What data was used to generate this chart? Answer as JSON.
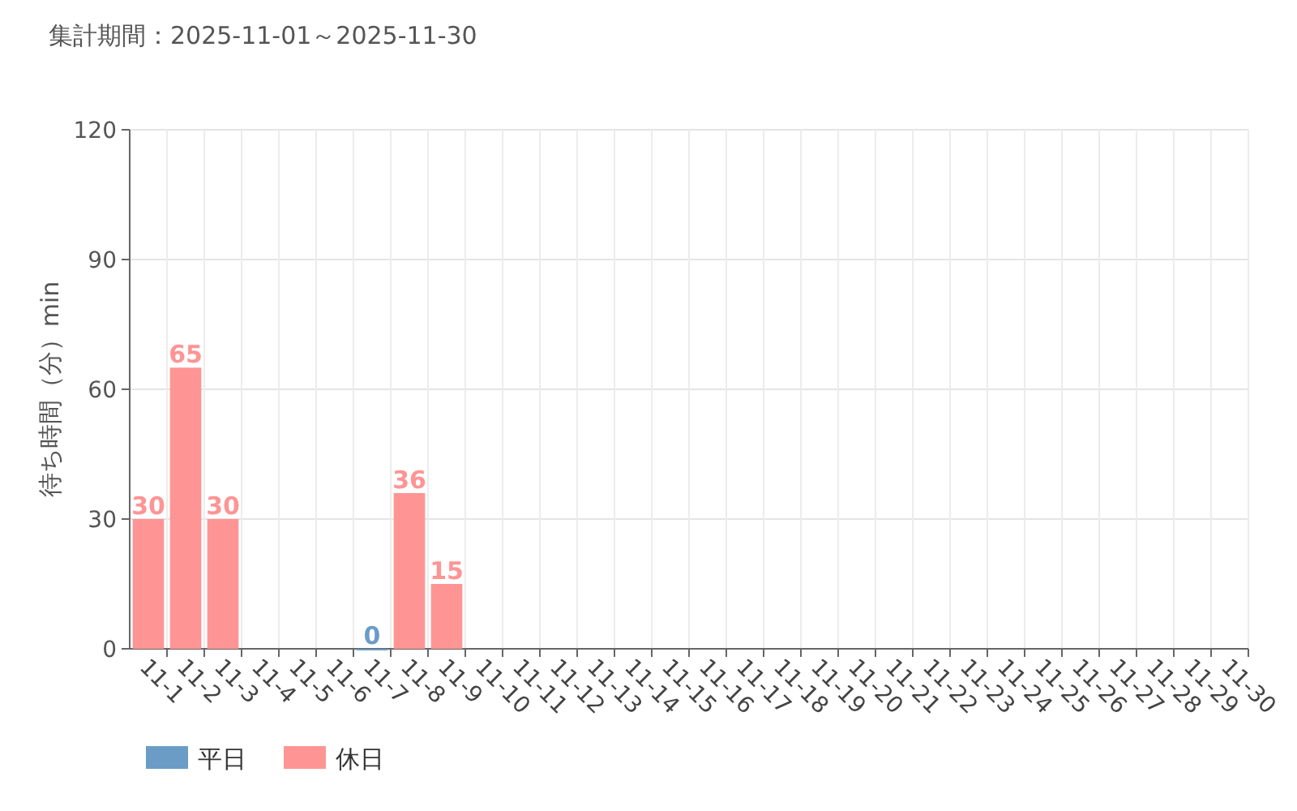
{
  "chart_data": {
    "type": "bar",
    "title": "集計期間：2025-11-01～2025-11-30",
    "ylabel": "待ち時間（分）min",
    "categories": [
      "11-1",
      "11-2",
      "11-3",
      "11-4",
      "11-5",
      "11-6",
      "11-7",
      "11-8",
      "11-9",
      "11-10",
      "11-11",
      "11-12",
      "11-13",
      "11-14",
      "11-15",
      "11-16",
      "11-17",
      "11-18",
      "11-19",
      "11-20",
      "11-21",
      "11-22",
      "11-23",
      "11-24",
      "11-25",
      "11-26",
      "11-27",
      "11-28",
      "11-29",
      "11-30"
    ],
    "series": [
      {
        "name": "平日",
        "color": "#6a9cc6",
        "values": [
          null,
          null,
          null,
          null,
          null,
          null,
          0,
          null,
          null,
          null,
          null,
          null,
          null,
          null,
          null,
          null,
          null,
          null,
          null,
          null,
          null,
          null,
          null,
          null,
          null,
          null,
          null,
          null,
          null,
          null
        ]
      },
      {
        "name": "休日",
        "color": "#ff9494",
        "values": [
          30,
          65,
          30,
          null,
          null,
          null,
          null,
          36,
          15,
          null,
          null,
          null,
          null,
          null,
          null,
          null,
          null,
          null,
          null,
          null,
          null,
          null,
          null,
          null,
          null,
          null,
          null,
          null,
          null,
          null
        ]
      }
    ],
    "ylim": [
      0,
      120
    ],
    "yticks": [
      0,
      30,
      60,
      90,
      120
    ],
    "grid": true,
    "legend": "bottom left",
    "data_labels": true
  }
}
